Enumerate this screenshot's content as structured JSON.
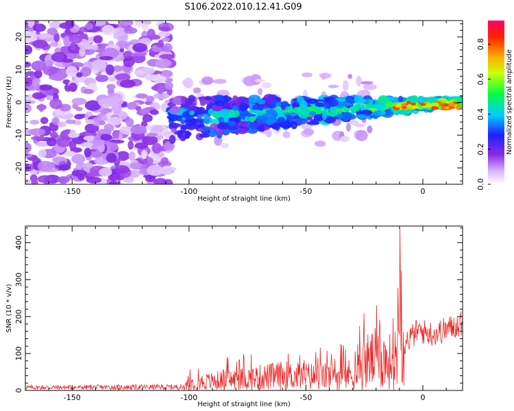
{
  "title": "S106.2022.010.12.41.G09",
  "chart_data": [
    {
      "type": "heatmap",
      "xlabel": "Height of straight line (km)",
      "ylabel": "Frequency (Hz)",
      "xlim": [
        -170,
        17
      ],
      "ylim": [
        -25,
        25
      ],
      "x_ticks": [
        -150,
        -100,
        -50,
        0
      ],
      "y_ticks": [
        -20,
        -10,
        0,
        10,
        20
      ],
      "colorbar": {
        "label": "Normalized spectral amplitude",
        "range": [
          0.0,
          0.9
        ],
        "ticks": [
          0.0,
          0.2,
          0.4,
          0.6,
          0.8
        ]
      },
      "regions": [
        {
          "x_range": [
            -170,
            -110
          ],
          "freq_range": [
            -25,
            25
          ],
          "amplitude": 0.08
        },
        {
          "x_range": [
            -110,
            -60
          ],
          "freq_center_range": [
            -6,
            1
          ],
          "amplitude": 0.22
        },
        {
          "x_range": [
            -60,
            -10
          ],
          "freq_center_range": [
            -4,
            0
          ],
          "amplitude": 0.3
        },
        {
          "x_range": [
            -10,
            17
          ],
          "freq_center_range": [
            -2,
            0
          ],
          "amplitude": 0.85
        }
      ]
    },
    {
      "type": "line",
      "xlabel": "Height of straight line (km)",
      "ylabel": "SNR (10 * v/v)",
      "xlim": [
        -170,
        17
      ],
      "ylim": [
        0,
        445
      ],
      "x_ticks": [
        -150,
        -100,
        -50,
        0
      ],
      "y_ticks": [
        0,
        100,
        200,
        300,
        400
      ],
      "series": [
        {
          "color": "#ee2222",
          "envelope": [
            {
              "x": -170,
              "y": 12
            },
            {
              "x": -102,
              "y": 15
            },
            {
              "x": -100,
              "y": 40
            },
            {
              "x": -80,
              "y": 60
            },
            {
              "x": -60,
              "y": 80
            },
            {
              "x": -40,
              "y": 75
            },
            {
              "x": -28,
              "y": 90
            },
            {
              "x": -26,
              "y": 150
            },
            {
              "x": -20,
              "y": 170
            },
            {
              "x": -12,
              "y": 150
            },
            {
              "x": -10,
              "y": 440
            },
            {
              "x": -8,
              "y": 150
            },
            {
              "x": -2,
              "y": 190
            },
            {
              "x": 5,
              "y": 180
            },
            {
              "x": 17,
              "y": 215
            }
          ]
        }
      ]
    }
  ]
}
